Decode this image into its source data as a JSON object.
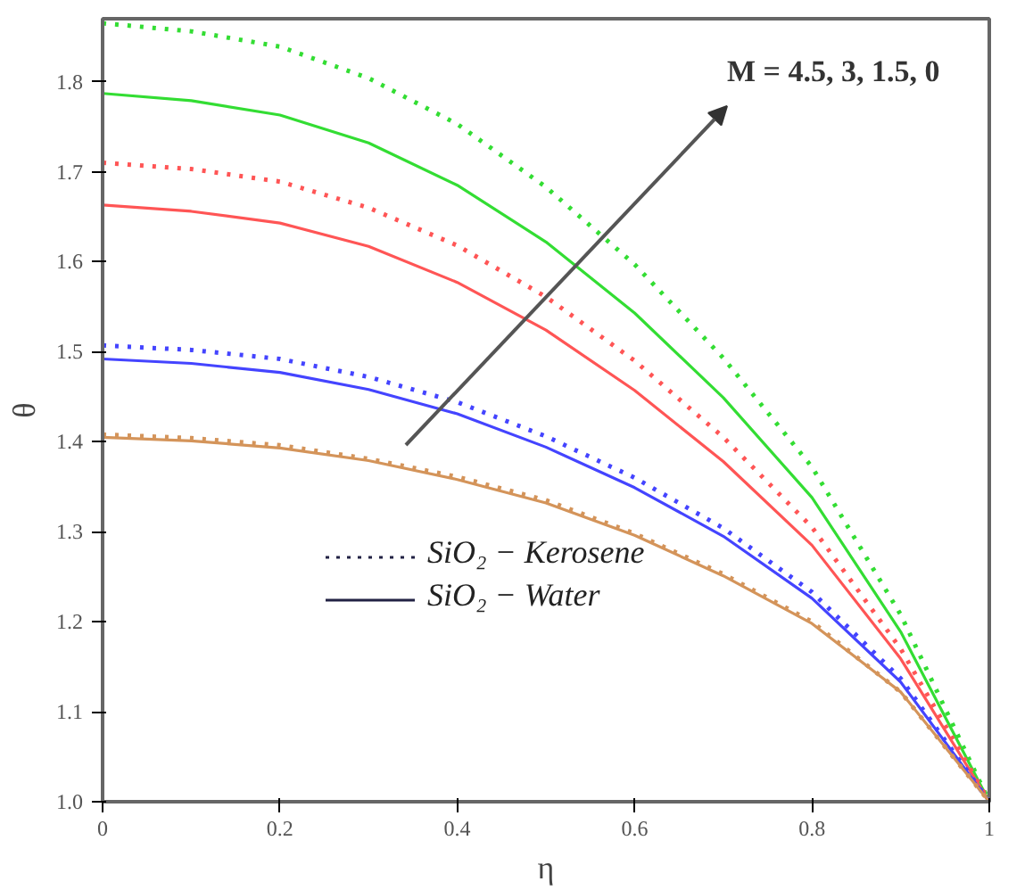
{
  "chart_data": {
    "type": "line",
    "xlabel": "η",
    "ylabel": "θ",
    "x": [
      0,
      0.1,
      0.2,
      0.3,
      0.4,
      0.5,
      0.6,
      0.7,
      0.8,
      0.9,
      1.0
    ],
    "xlim": [
      0,
      1.0
    ],
    "xticks": [
      0,
      0.2,
      0.4,
      0.6,
      0.8,
      1
    ],
    "ylim": [
      1.0,
      1.87
    ],
    "yticks": [
      {
        "value": 1.0,
        "label": "1.0"
      },
      1.1,
      1.2,
      1.3,
      1.4,
      1.5,
      1.6,
      1.7,
      1.8
    ],
    "grid": false,
    "series": [
      {
        "color": "#33dd33",
        "line_style": "dotted",
        "values": [
          1.865,
          1.856,
          1.839,
          1.804,
          1.753,
          1.683,
          1.597,
          1.493,
          1.372,
          1.208,
          1.0
        ]
      },
      {
        "color": "#33dd33",
        "line_style": "solid",
        "values": [
          1.787,
          1.779,
          1.763,
          1.732,
          1.685,
          1.622,
          1.543,
          1.449,
          1.338,
          1.189,
          1.0
        ]
      },
      {
        "color": "#ff5555",
        "line_style": "dotted",
        "values": [
          1.71,
          1.703,
          1.689,
          1.66,
          1.618,
          1.561,
          1.49,
          1.405,
          1.305,
          1.17,
          1.0
        ]
      },
      {
        "color": "#ff5555",
        "line_style": "solid",
        "values": [
          1.663,
          1.656,
          1.643,
          1.617,
          1.577,
          1.524,
          1.457,
          1.378,
          1.285,
          1.159,
          1.0
        ]
      },
      {
        "color": "#4444ff",
        "line_style": "dotted",
        "values": [
          1.507,
          1.502,
          1.492,
          1.472,
          1.444,
          1.406,
          1.36,
          1.304,
          1.233,
          1.137,
          1.0
        ]
      },
      {
        "color": "#4444ff",
        "line_style": "solid",
        "values": [
          1.492,
          1.487,
          1.477,
          1.458,
          1.431,
          1.394,
          1.349,
          1.295,
          1.226,
          1.133,
          1.0
        ]
      },
      {
        "color": "#d4945a",
        "line_style": "dotted",
        "values": [
          1.408,
          1.404,
          1.396,
          1.381,
          1.361,
          1.335,
          1.298,
          1.253,
          1.2,
          1.122,
          1.0
        ]
      },
      {
        "color": "#d4945a",
        "line_style": "solid",
        "values": [
          1.405,
          1.401,
          1.393,
          1.379,
          1.358,
          1.332,
          1.296,
          1.251,
          1.198,
          1.122,
          1.0
        ]
      }
    ],
    "annotations": [
      "M = 4.5, 3, 1.5, 0",
      "SiO₂ − Kerosene",
      "SiO₂ − Water"
    ]
  }
}
